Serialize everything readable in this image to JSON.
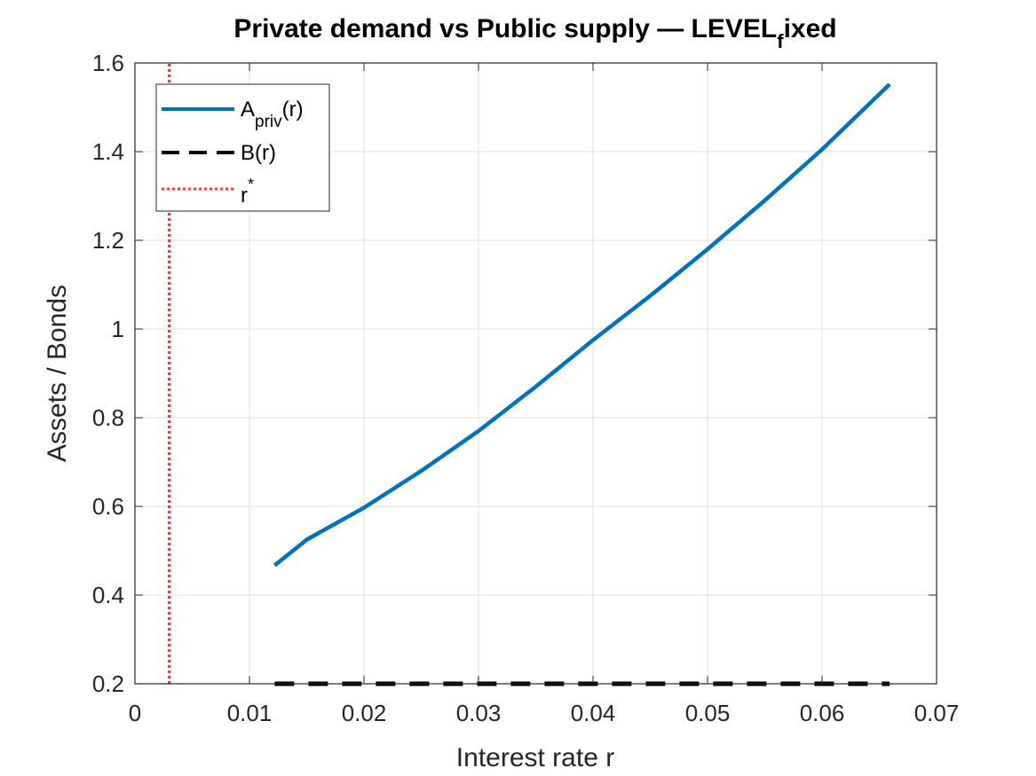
{
  "chart_data": {
    "type": "line",
    "title": "Private demand vs Public supply — LEVEL",
    "title_subscript": "f",
    "title_suffix": "ixed",
    "xlabel": "Interest rate r",
    "ylabel": "Assets / Bonds",
    "xlim": [
      0,
      0.07
    ],
    "ylim": [
      0.2,
      1.6
    ],
    "x_ticks": [
      0,
      0.01,
      0.02,
      0.03,
      0.04,
      0.05,
      0.06,
      0.07
    ],
    "x_tick_labels": [
      "0",
      "0.01",
      "0.02",
      "0.03",
      "0.04",
      "0.05",
      "0.06",
      "0.07"
    ],
    "y_ticks": [
      0.2,
      0.4,
      0.6,
      0.8,
      1.0,
      1.2,
      1.4,
      1.6
    ],
    "y_tick_labels": [
      "0.2",
      "0.4",
      "0.6",
      "0.8",
      "1",
      "1.2",
      "1.4",
      "1.6"
    ],
    "grid": true,
    "legend_position": "top-left",
    "series": [
      {
        "legend_base": "A",
        "legend_sub": "priv",
        "legend_suffix": "(r)",
        "style": "solid",
        "color": "#0072BD",
        "x": [
          0.0122,
          0.015,
          0.02,
          0.025,
          0.03,
          0.035,
          0.04,
          0.045,
          0.05,
          0.055,
          0.06,
          0.0659
        ],
        "y": [
          0.467,
          0.525,
          0.597,
          0.68,
          0.77,
          0.87,
          0.975,
          1.075,
          1.18,
          1.29,
          1.405,
          1.552
        ]
      },
      {
        "legend_base": "B(r)",
        "style": "dashed",
        "color": "#000000",
        "x": [
          0.0122,
          0.0659
        ],
        "y": [
          0.2,
          0.2
        ]
      },
      {
        "legend_base": "r",
        "legend_sup": "*",
        "style": "dotted",
        "color": "#E8403F",
        "x": [
          0.003,
          0.003
        ],
        "y": [
          0.2,
          1.6
        ]
      }
    ]
  }
}
